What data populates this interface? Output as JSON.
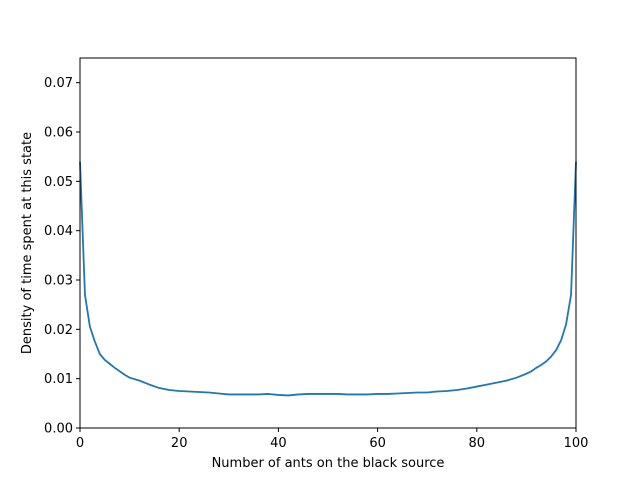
{
  "chart_data": {
    "type": "line",
    "title": "",
    "xlabel": "Number of ants on the black source",
    "ylabel": "Density of time spent at this state",
    "xlim": [
      0,
      100
    ],
    "ylim": [
      0,
      0.075
    ],
    "xticks": [
      0,
      20,
      40,
      60,
      80,
      100
    ],
    "xtick_labels": [
      "0",
      "20",
      "40",
      "60",
      "80",
      "100"
    ],
    "yticks": [
      0.0,
      0.01,
      0.02,
      0.03,
      0.04,
      0.05,
      0.06,
      0.07
    ],
    "ytick_labels": [
      "0.00",
      "0.01",
      "0.02",
      "0.03",
      "0.04",
      "0.05",
      "0.06",
      "0.07"
    ],
    "grid": false,
    "series": [
      {
        "color": "#1f77b4",
        "x": [
          0,
          1,
          2,
          3,
          4,
          5,
          6,
          7,
          8,
          9,
          10,
          12,
          14,
          16,
          18,
          20,
          22,
          24,
          26,
          28,
          30,
          32,
          34,
          36,
          38,
          40,
          42,
          44,
          46,
          48,
          50,
          52,
          54,
          56,
          58,
          60,
          62,
          64,
          66,
          68,
          70,
          72,
          74,
          76,
          78,
          80,
          82,
          84,
          86,
          88,
          90,
          91,
          92,
          93,
          94,
          95,
          96,
          97,
          98,
          99,
          100
        ],
        "y": [
          0.054,
          0.027,
          0.0205,
          0.0175,
          0.015,
          0.0138,
          0.013,
          0.0122,
          0.0115,
          0.0108,
          0.0102,
          0.0096,
          0.0088,
          0.0081,
          0.0077,
          0.0075,
          0.0074,
          0.0073,
          0.0072,
          0.007,
          0.0068,
          0.0068,
          0.0068,
          0.0068,
          0.0069,
          0.0067,
          0.0066,
          0.0068,
          0.0069,
          0.0069,
          0.0069,
          0.0069,
          0.0068,
          0.0068,
          0.0068,
          0.0069,
          0.0069,
          0.007,
          0.0071,
          0.0072,
          0.0072,
          0.0074,
          0.0075,
          0.0077,
          0.008,
          0.0084,
          0.0088,
          0.0092,
          0.0096,
          0.0102,
          0.011,
          0.0115,
          0.0122,
          0.0128,
          0.0135,
          0.0145,
          0.0158,
          0.0178,
          0.021,
          0.027,
          0.054
        ]
      }
    ]
  }
}
